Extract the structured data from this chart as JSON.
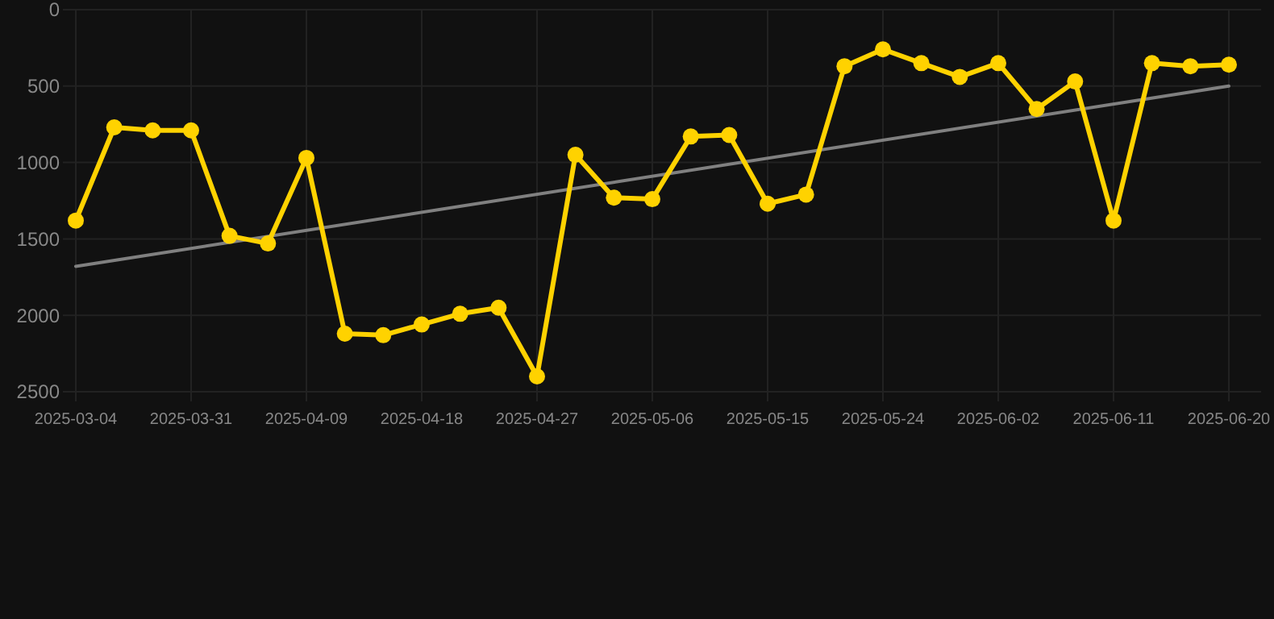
{
  "chart_data": {
    "type": "line",
    "categories": [
      "2025-03-04",
      null,
      null,
      "2025-03-31",
      null,
      null,
      "2025-04-09",
      null,
      null,
      "2025-04-18",
      null,
      null,
      "2025-04-27",
      null,
      null,
      "2025-05-06",
      null,
      null,
      "2025-05-15",
      null,
      null,
      "2025-05-24",
      null,
      null,
      "2025-06-02",
      null,
      null,
      "2025-06-11",
      null,
      null,
      "2025-06-20"
    ],
    "series": [
      {
        "color": "#ffd200",
        "marker": "circle",
        "values": [
          1380,
          770,
          790,
          790,
          1480,
          1530,
          970,
          2120,
          2130,
          2060,
          1990,
          1950,
          2400,
          950,
          1230,
          1240,
          830,
          820,
          1270,
          1210,
          370,
          260,
          350,
          440,
          350,
          650,
          470,
          1380,
          350,
          370,
          360
        ]
      },
      {
        "type": "line",
        "color": "#808080",
        "marker": "none",
        "values": [
          1680,
          null,
          null,
          null,
          null,
          null,
          null,
          null,
          null,
          null,
          null,
          null,
          null,
          null,
          null,
          null,
          null,
          null,
          null,
          null,
          null,
          null,
          null,
          null,
          null,
          null,
          null,
          null,
          null,
          null,
          500
        ]
      }
    ],
    "ylim": [
      2500,
      0
    ],
    "yticks": [
      0,
      500,
      1000,
      1500,
      2000,
      2500
    ],
    "grid": true
  }
}
